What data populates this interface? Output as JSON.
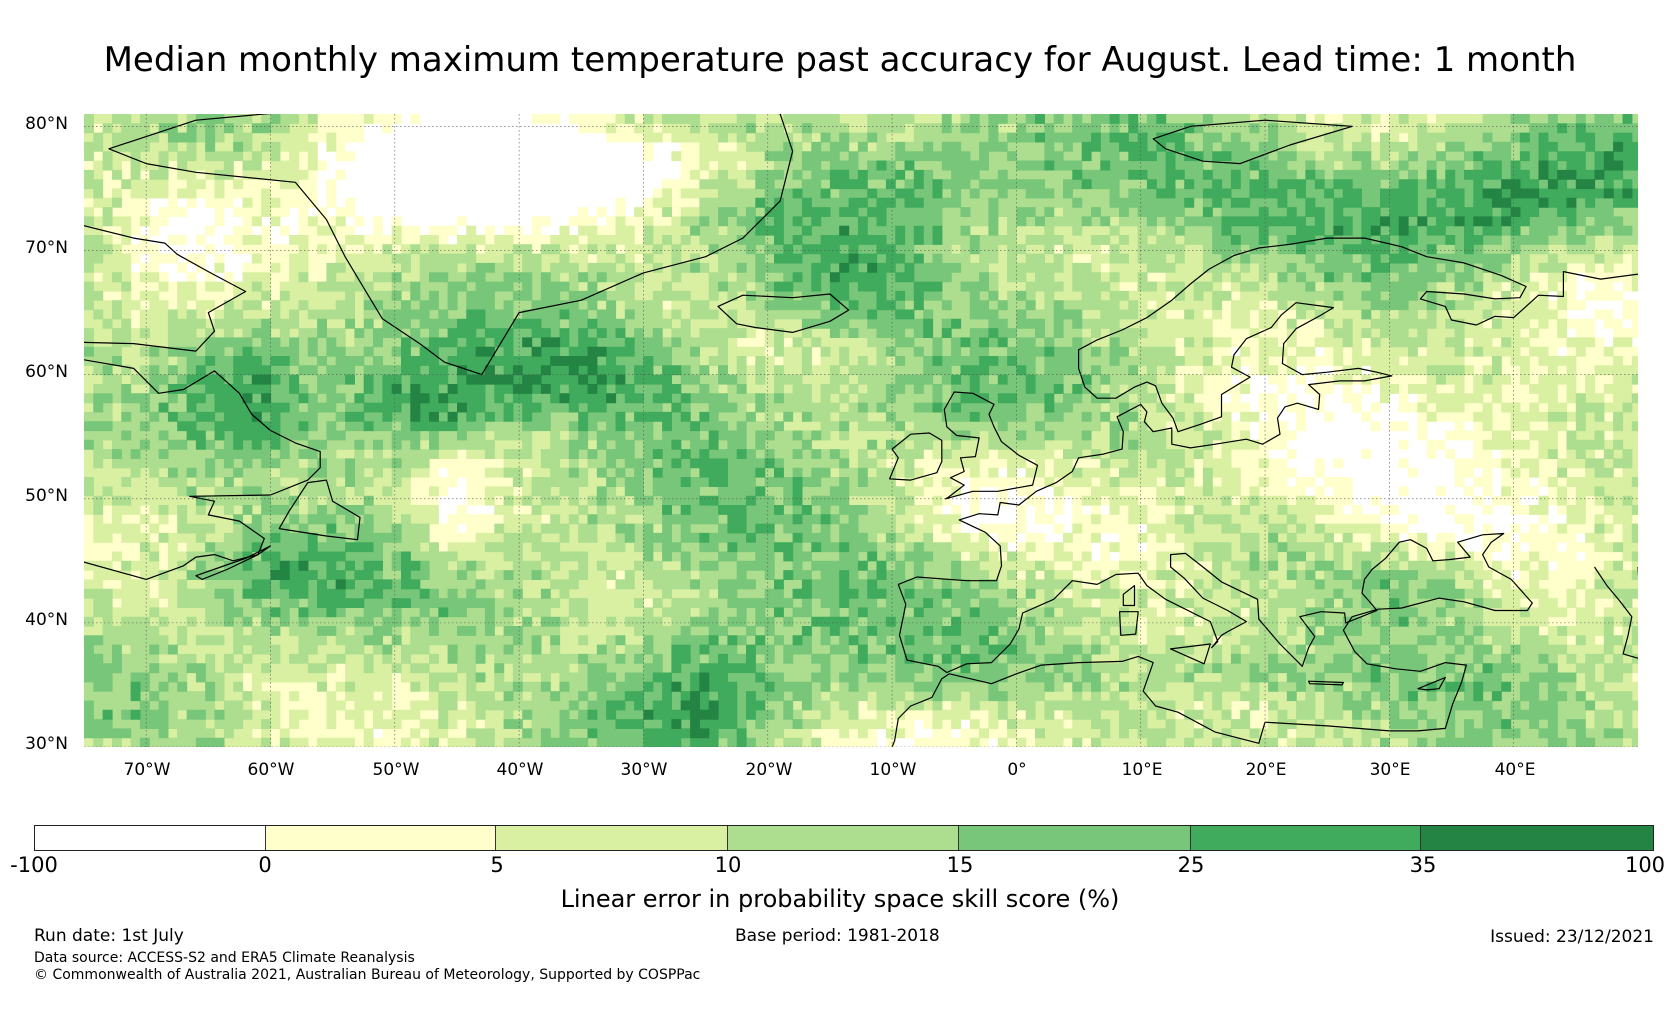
{
  "title": "Median monthly maximum temperature past accuracy for August. Lead time: 1 month",
  "map": {
    "region": "North Atlantic and Europe",
    "lon_range": [
      -75,
      50
    ],
    "lat_range": [
      30,
      81
    ],
    "lat_ticks": [
      {
        "value": 80,
        "label": "80°N"
      },
      {
        "value": 70,
        "label": "70°N"
      },
      {
        "value": 60,
        "label": "60°N"
      },
      {
        "value": 50,
        "label": "50°N"
      },
      {
        "value": 40,
        "label": "40°N"
      },
      {
        "value": 30,
        "label": "30°N"
      }
    ],
    "lon_ticks": [
      {
        "value": -70,
        "label": "70°W"
      },
      {
        "value": -60,
        "label": "60°W"
      },
      {
        "value": -50,
        "label": "50°W"
      },
      {
        "value": -40,
        "label": "40°W"
      },
      {
        "value": -30,
        "label": "30°W"
      },
      {
        "value": -20,
        "label": "20°W"
      },
      {
        "value": -10,
        "label": "10°W"
      },
      {
        "value": 0,
        "label": "0°"
      },
      {
        "value": 10,
        "label": "10°E"
      },
      {
        "value": 20,
        "label": "20°E"
      },
      {
        "value": 30,
        "label": "30°E"
      },
      {
        "value": 40,
        "label": "40°E"
      }
    ],
    "gridlines": "dotted",
    "coastline_color": "#000000"
  },
  "colorbar": {
    "boundaries": [
      "-100",
      "0",
      "5",
      "10",
      "15",
      "25",
      "35",
      "100"
    ],
    "colors": [
      "#ffffff",
      "#ffffcc",
      "#d9f0a3",
      "#addd8e",
      "#78c679",
      "#41ab5d",
      "#238443"
    ],
    "label": "Linear error in probability space skill score (%)"
  },
  "footer": {
    "run_date": "Run date: 1st July",
    "base_period": "Base period: 1981-2018",
    "issued": "Issued: 23/12/2021",
    "data_source": "Data source: ACCESS-S2 and ERA5 Climate Reanalysis",
    "copyright": "© Commonwealth of Australia 2021, Australian Bureau of Meteorology, Supported by COSPPac"
  }
}
